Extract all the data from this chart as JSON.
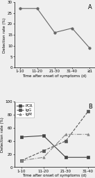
{
  "chart_A": {
    "x_labels": [
      "1-10",
      "11-20",
      "21-30",
      "31-40",
      "≥1"
    ],
    "y_values": [
      27,
      27,
      16,
      18,
      9
    ],
    "ylim": [
      0,
      30
    ],
    "yticks": [
      0,
      5,
      10,
      15,
      20,
      25,
      30
    ],
    "ylabel": "Detection rate (%)",
    "xlabel": "Time after onset of symptoms (d)",
    "label": "A",
    "color": "#666666",
    "marker": "o",
    "markersize": 2.5,
    "linewidth": 0.8
  },
  "chart_B": {
    "x_labels": [
      "1-10",
      "11-20",
      "21-30",
      "31-40"
    ],
    "series_order": [
      "PCR",
      "IgG",
      "IgM"
    ],
    "series": {
      "PCR": {
        "y_values": [
          46,
          48,
          15,
          15
        ],
        "color": "#444444",
        "marker": "s",
        "linestyle": "-",
        "linewidth": 0.8,
        "markersize": 2.5
      },
      "IgG": {
        "y_values": [
          10,
          25,
          40,
          85
        ],
        "color": "#555555",
        "marker": "s",
        "linestyle": "--",
        "linewidth": 0.8,
        "markersize": 2.5
      },
      "IgM": {
        "y_values": [
          10,
          15,
          50,
          50
        ],
        "color": "#888888",
        "marker": "^",
        "linestyle": "-.",
        "linewidth": 0.8,
        "markersize": 2.5
      }
    },
    "ylim": [
      0,
      100
    ],
    "yticks": [
      0,
      20,
      40,
      60,
      80,
      100
    ],
    "ylabel": "Detection rate (%)",
    "xlabel": "Time after onset of symptoms (d)",
    "label": "B"
  },
  "background_color": "#efefef",
  "font_size": 4.0,
  "label_font_size": 6.0
}
